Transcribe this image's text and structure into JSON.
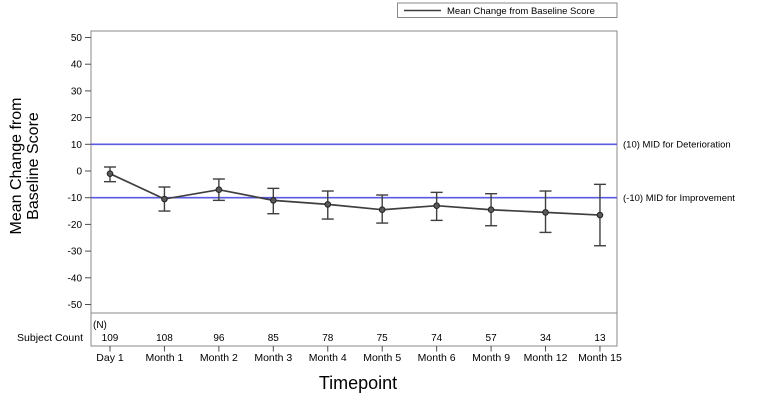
{
  "chart_data": {
    "type": "line",
    "title": "",
    "xlabel": "Timepoint",
    "ylabel": "Mean Change from Baseline Score",
    "ylabel_lines": [
      "Mean Change from",
      "Baseline Score"
    ],
    "ylim": [
      -53,
      53
    ],
    "yticks": [
      50,
      40,
      30,
      20,
      10,
      0,
      -10,
      -20,
      -30,
      -40,
      -50
    ],
    "grid": false,
    "categories": [
      "Day 1",
      "Month 1",
      "Month 2",
      "Month 3",
      "Month 4",
      "Month 5",
      "Month 6",
      "Month 9",
      "Month 12",
      "Month 15"
    ],
    "series": [
      {
        "name": "Mean Change from Baseline Score",
        "values": [
          -1,
          -10.5,
          -7,
          -11,
          -12.5,
          -14.5,
          -13,
          -14.5,
          -15.5,
          -16.5
        ],
        "ci_upper": [
          1.5,
          -6,
          -3,
          -6.5,
          -7.5,
          -9,
          -8,
          -8.5,
          -7.5,
          -5
        ],
        "ci_lower": [
          -4,
          -15,
          -11,
          -16,
          -18,
          -19.5,
          -18.5,
          -20.5,
          -23,
          -28
        ]
      }
    ],
    "reference_lines": [
      {
        "value": 10,
        "label": "(10) MID for Deterioration"
      },
      {
        "value": -10,
        "label": "(-10) MID for Improvement"
      }
    ],
    "subject_counts": {
      "row_label": "Subject Count",
      "n_label": "(N)",
      "values": [
        109,
        108,
        96,
        85,
        78,
        75,
        74,
        57,
        34,
        13
      ]
    },
    "legend": {
      "label": "Mean Change from Baseline Score",
      "position": "top-right"
    },
    "colors": {
      "series": "#3f3f3f",
      "reference": "#5a5ae0",
      "border": "#8a8a8a",
      "text": "#000000"
    }
  }
}
